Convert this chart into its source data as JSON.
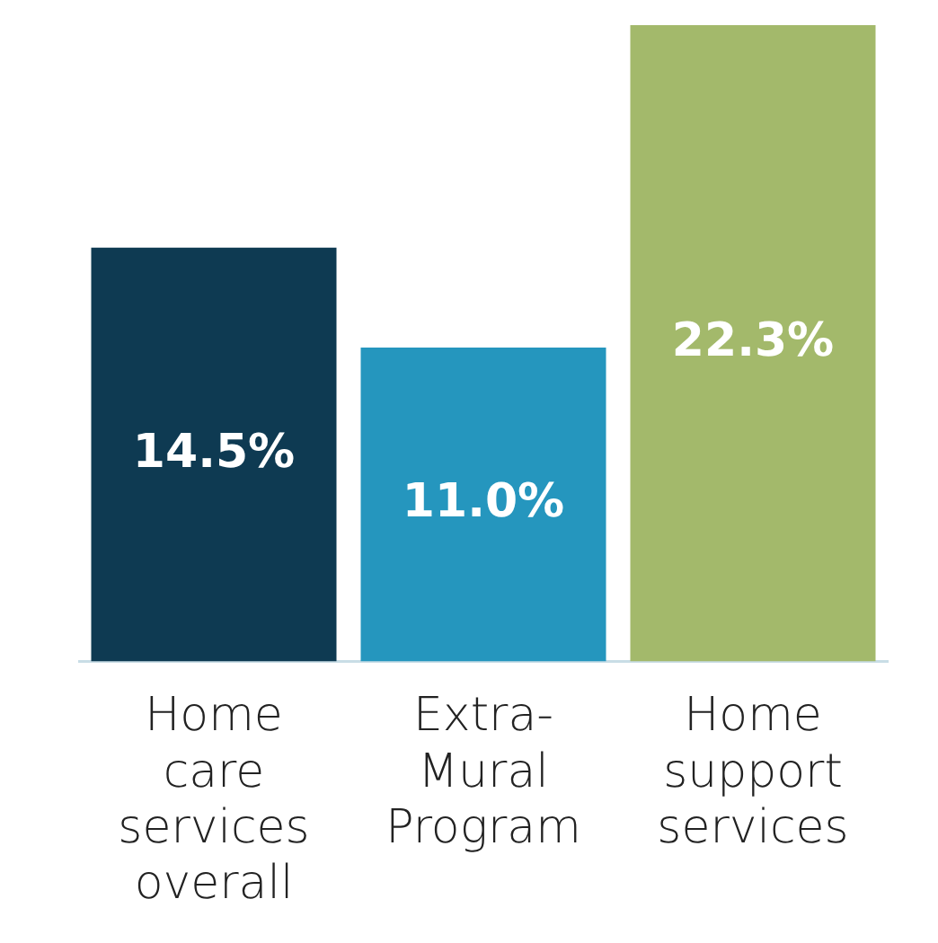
{
  "chart_data": {
    "type": "bar",
    "categories": [
      "Home care services overall",
      "Extra-Mural Program",
      "Home support services"
    ],
    "values": [
      14.5,
      11.0,
      22.3
    ],
    "colors": [
      "#0e3a52",
      "#2596be",
      "#a3b96b"
    ],
    "value_labels": [
      "14.5%",
      "11.0%",
      "22.3%"
    ],
    "ylim": [
      0,
      22.3
    ],
    "tick_labels": "x",
    "grid": false,
    "legend": false
  }
}
